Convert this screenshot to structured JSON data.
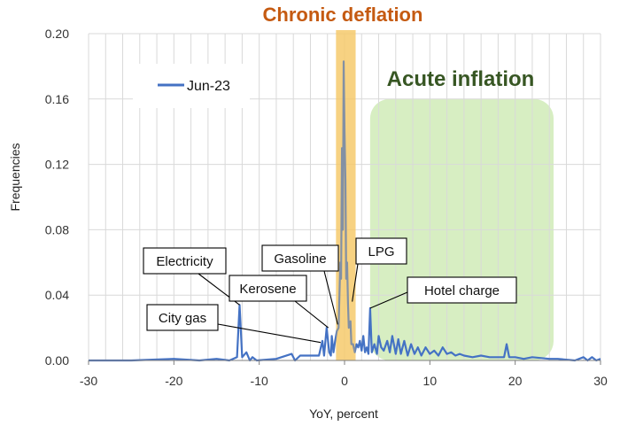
{
  "chart_data": {
    "type": "line",
    "title": "Chronic deflation",
    "region_label": "Acute inflation",
    "xlabel": "YoY, percent",
    "ylabel": "Frequencies",
    "xlim": [
      -30,
      30
    ],
    "ylim": [
      0,
      0.2
    ],
    "x_ticks": [
      -30,
      -20,
      -10,
      0,
      10,
      20,
      30
    ],
    "x_tick_labels": [
      "-30",
      "-20",
      "-10",
      "0",
      "10",
      "20",
      "30"
    ],
    "y_ticks": [
      0,
      0.04,
      0.08,
      0.12,
      0.16,
      0.2
    ],
    "y_tick_labels": [
      "0.00",
      "0.04",
      "0.08",
      "0.12",
      "0.16",
      "0.20"
    ],
    "grid": true,
    "legend": {
      "placement": "top-left",
      "entries": [
        "Jun-23"
      ]
    },
    "deflation_band": {
      "x_range": [
        -1,
        1.3
      ],
      "color": "#f5c96a"
    },
    "inflation_region": {
      "x_range": [
        3,
        24.5
      ],
      "y_range": [
        0,
        0.16
      ],
      "color": "#c6e7a8"
    },
    "series": [
      {
        "name": "Jun-23",
        "color": "#4472c4",
        "x": [
          -30,
          -25,
          -20,
          -17,
          -15,
          -13.5,
          -12.6,
          -12.3,
          -12,
          -11.5,
          -11.1,
          -10.8,
          -10.3,
          -8,
          -6.2,
          -5.8,
          -5.2,
          -3,
          -2.6,
          -2.4,
          -2.1,
          -1.8,
          -1.6,
          -1.5,
          -1.3,
          -1.1,
          -0.9,
          -0.7,
          -0.5,
          -0.4,
          -0.3,
          -0.2,
          -0.1,
          0,
          0.1,
          0.2,
          0.3,
          0.4,
          0.5,
          0.7,
          0.8,
          1.0,
          1.2,
          1.4,
          1.6,
          1.8,
          2.0,
          2.2,
          2.4,
          2.6,
          2.8,
          3.0,
          3.2,
          3.5,
          3.8,
          4.0,
          4.3,
          4.6,
          5.0,
          5.3,
          5.6,
          6.0,
          6.3,
          6.6,
          7.0,
          7.4,
          7.8,
          8.2,
          8.6,
          9.0,
          9.5,
          10.0,
          10.5,
          11.0,
          11.5,
          12.0,
          12.5,
          13.0,
          13.5,
          14.0,
          15,
          16,
          17,
          18,
          18.7,
          19,
          19.3,
          20,
          21,
          22,
          24,
          25,
          27,
          28,
          28.5,
          29,
          29.5,
          30
        ],
        "values": [
          0,
          0,
          0.001,
          0,
          0.001,
          0,
          0.002,
          0.034,
          0.002,
          0.005,
          0,
          0.002,
          0,
          0.001,
          0.004,
          0,
          0.003,
          0.003,
          0.012,
          0.003,
          0.02,
          0.005,
          0.003,
          0.015,
          0.005,
          0.012,
          0.018,
          0.02,
          0.06,
          0.05,
          0.13,
          0.08,
          0.183,
          0.14,
          0.11,
          0.05,
          0.06,
          0.035,
          0.02,
          0.024,
          0.01,
          0.01,
          0.005,
          0.01,
          0.008,
          0.012,
          0.006,
          0.015,
          0.005,
          0.008,
          0.004,
          0.032,
          0.005,
          0.01,
          0.004,
          0.015,
          0.008,
          0.006,
          0.012,
          0.005,
          0.015,
          0.004,
          0.013,
          0.004,
          0.012,
          0.003,
          0.01,
          0.004,
          0.008,
          0.003,
          0.008,
          0.004,
          0.006,
          0.003,
          0.008,
          0.004,
          0.005,
          0.003,
          0.004,
          0.003,
          0.002,
          0.003,
          0.002,
          0.002,
          0.002,
          0.01,
          0.002,
          0.002,
          0.001,
          0.002,
          0.001,
          0.001,
          0,
          0.002,
          0,
          0.002,
          0,
          0.001
        ]
      }
    ],
    "annotations": [
      {
        "label": "Electricity",
        "x": -12.3,
        "y": 0.034
      },
      {
        "label": "City gas",
        "x": -2.8,
        "y": 0.011
      },
      {
        "label": "Kerosene",
        "x": -1.9,
        "y": 0.02
      },
      {
        "label": "Gasoline",
        "x": -0.8,
        "y": 0.022
      },
      {
        "label": "LPG",
        "x": 0.9,
        "y": 0.036
      },
      {
        "label": "Hotel charge",
        "x": 3.0,
        "y": 0.032
      }
    ]
  }
}
